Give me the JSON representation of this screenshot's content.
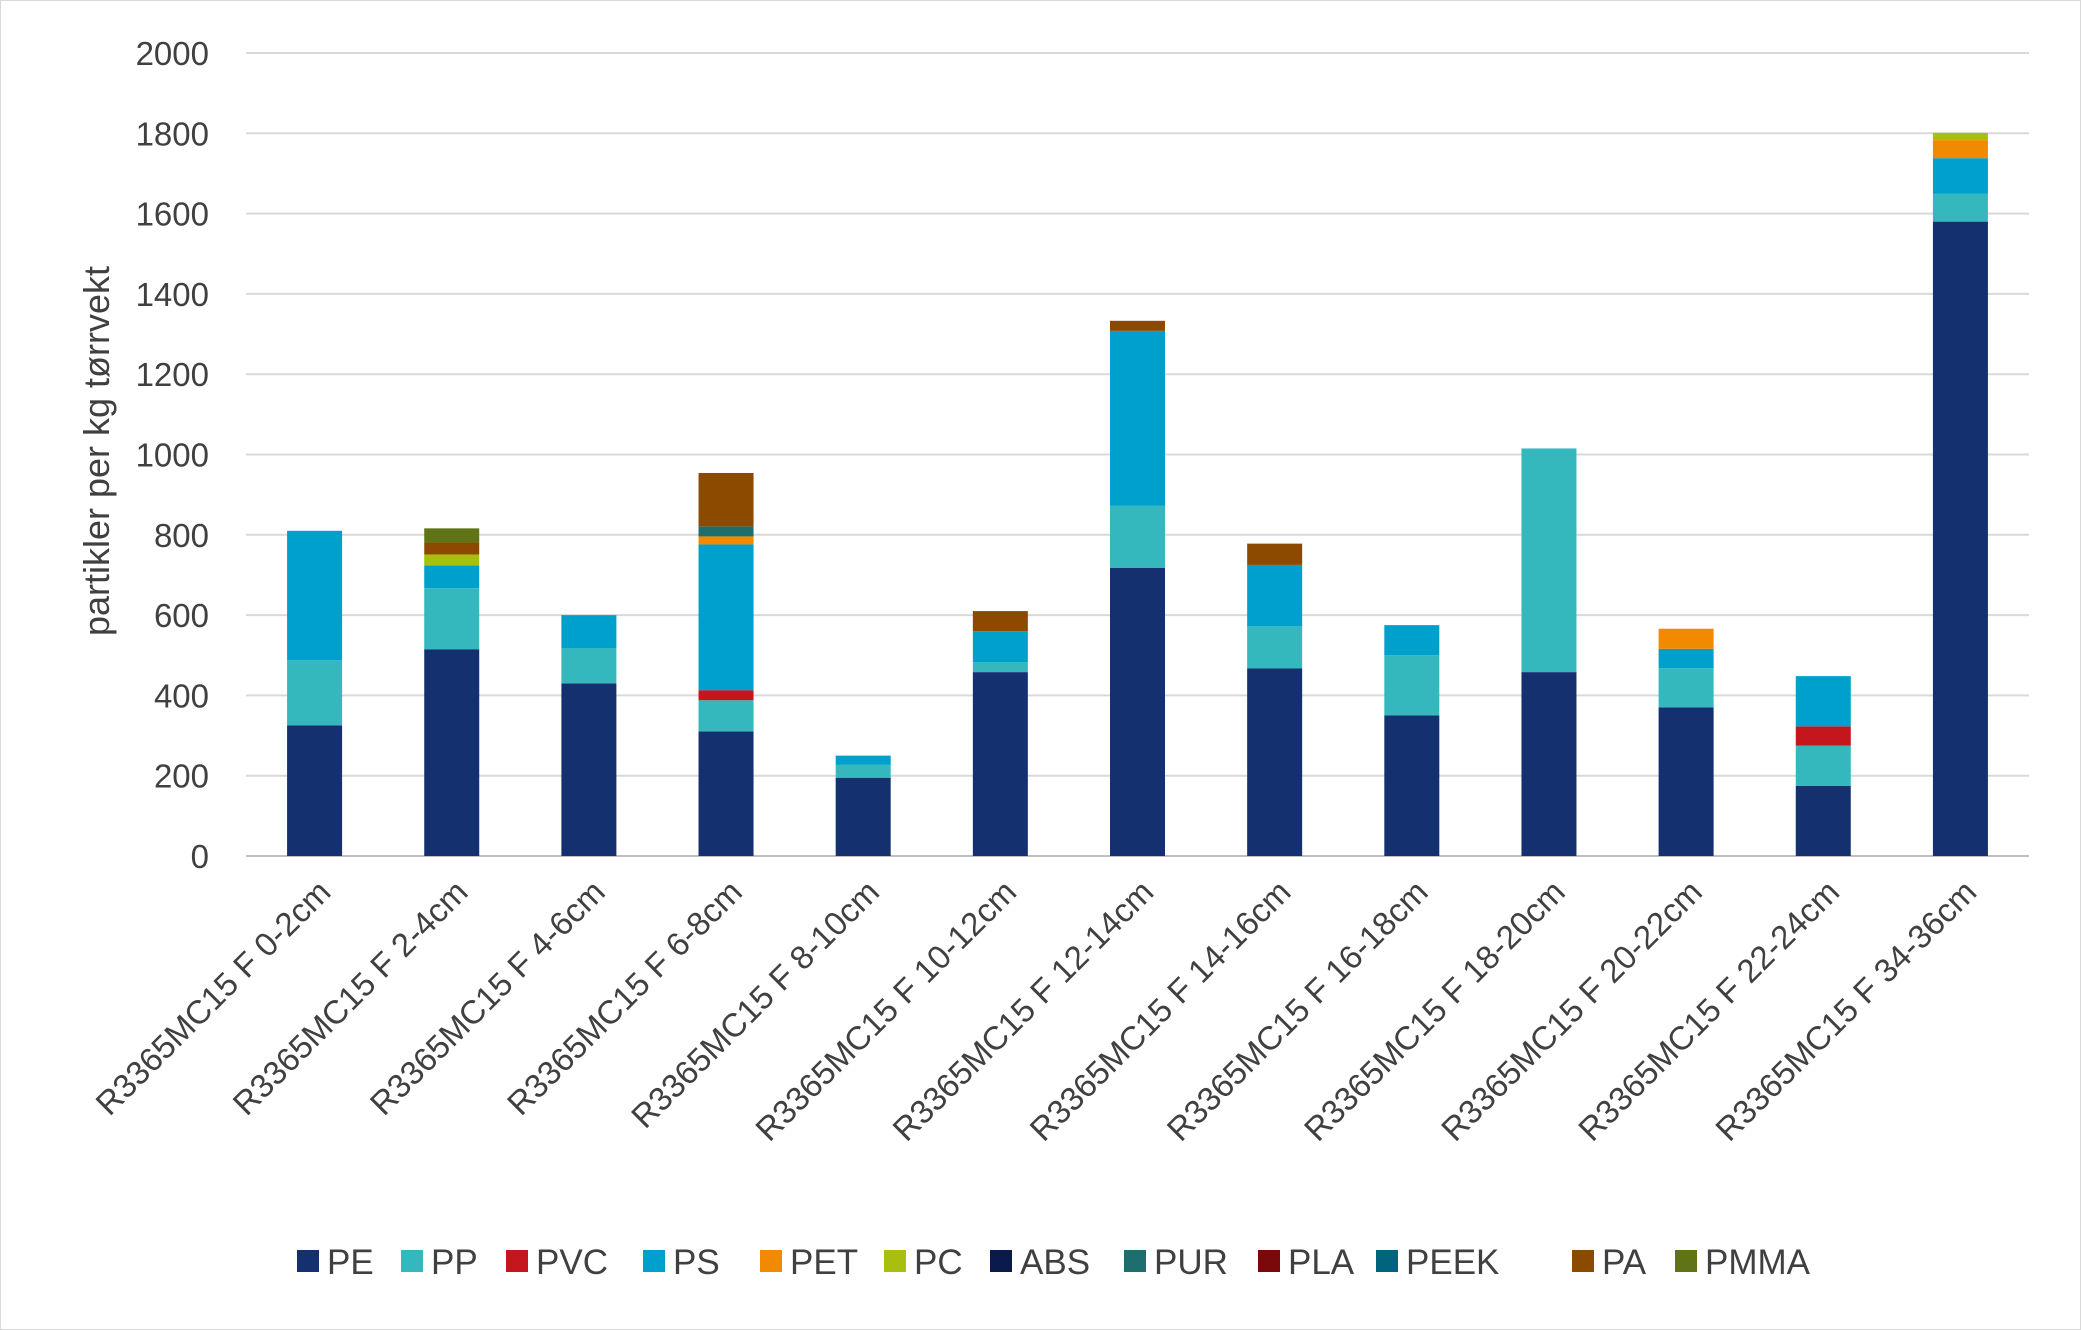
{
  "chart_data": {
    "type": "bar",
    "stacked": true,
    "title": "",
    "xlabel": "",
    "ylabel": "partikler per kg tørrvekt",
    "ylim": [
      0,
      2000
    ],
    "yticks": [
      0,
      200,
      400,
      600,
      800,
      1000,
      1200,
      1400,
      1600,
      1800,
      2000
    ],
    "grid": true,
    "legend_position": "bottom",
    "categories": [
      "R3365MC15 F 0-2cm",
      "R3365MC15 F 2-4cm",
      "R3365MC15 F 4-6cm",
      "R3365MC15 F 6-8cm",
      "R3365MC15 F 8-10cm",
      "R3365MC15 F 10-12cm",
      "R3365MC15 F 12-14cm",
      "R3365MC15 F 14-16cm",
      "R3365MC15 F 16-18cm",
      "R3365MC15 F 18-20cm",
      "R3365MC15 F 20-22cm",
      "R3365MC15 F 22-24cm",
      "R3365MC15 F 34-36cm"
    ],
    "series": [
      {
        "name": "PE",
        "color": "#14306f",
        "values": [
          325,
          515,
          430,
          310,
          195,
          458,
          718,
          467,
          350,
          458,
          370,
          175,
          1580
        ]
      },
      {
        "name": "PP",
        "color": "#34b8bd",
        "values": [
          163,
          152,
          88,
          78,
          32,
          25,
          155,
          105,
          150,
          557,
          98,
          100,
          70
        ]
      },
      {
        "name": "PVC",
        "color": "#c4161c",
        "values": [
          0,
          0,
          0,
          25,
          0,
          0,
          0,
          0,
          0,
          0,
          0,
          48,
          0
        ]
      },
      {
        "name": "PS",
        "color": "#00a0cc",
        "values": [
          322,
          57,
          82,
          363,
          23,
          77,
          435,
          153,
          75,
          0,
          48,
          125,
          88
        ]
      },
      {
        "name": "PET",
        "color": "#f18a00",
        "values": [
          0,
          0,
          0,
          20,
          0,
          0,
          0,
          0,
          0,
          0,
          50,
          0,
          45
        ]
      },
      {
        "name": "PC",
        "color": "#a9bf0f",
        "values": [
          0,
          27,
          0,
          0,
          0,
          0,
          0,
          0,
          0,
          0,
          0,
          0,
          18
        ]
      },
      {
        "name": "ABS",
        "color": "#0b1a4d",
        "values": [
          0,
          0,
          0,
          0,
          0,
          0,
          0,
          0,
          0,
          0,
          0,
          0,
          0
        ]
      },
      {
        "name": "PUR",
        "color": "#1f6e6e",
        "values": [
          0,
          0,
          0,
          25,
          0,
          0,
          0,
          0,
          0,
          0,
          0,
          0,
          0
        ]
      },
      {
        "name": "PLA",
        "color": "#7a0a0a",
        "values": [
          0,
          0,
          0,
          0,
          0,
          0,
          0,
          0,
          0,
          0,
          0,
          0,
          0
        ]
      },
      {
        "name": "PEEK",
        "color": "#00647d",
        "values": [
          0,
          0,
          0,
          0,
          0,
          0,
          0,
          0,
          0,
          0,
          0,
          0,
          0
        ]
      },
      {
        "name": "PA",
        "color": "#8c4a00",
        "values": [
          0,
          30,
          0,
          133,
          0,
          50,
          25,
          53,
          0,
          0,
          0,
          0,
          0
        ]
      },
      {
        "name": "PMMA",
        "color": "#5e7416",
        "values": [
          0,
          35,
          0,
          0,
          0,
          0,
          0,
          0,
          0,
          0,
          0,
          0,
          0
        ]
      }
    ]
  },
  "colors": {
    "gridline": "#d9d9d9",
    "axis": "#bfbfbf",
    "text": "#404040"
  }
}
